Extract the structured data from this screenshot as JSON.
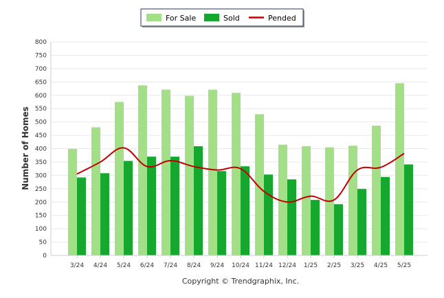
{
  "chart_data": {
    "type": "bar",
    "categories": [
      "3/24",
      "4/24",
      "5/24",
      "6/24",
      "7/24",
      "8/24",
      "9/24",
      "10/24",
      "11/24",
      "12/24",
      "1/25",
      "2/25",
      "3/25",
      "4/25",
      "5/25"
    ],
    "series": [
      {
        "name": "For Sale",
        "type": "bar",
        "color": "#a3df86",
        "values": [
          399,
          480,
          575,
          637,
          621,
          598,
          621,
          609,
          529,
          415,
          409,
          405,
          411,
          486,
          645
        ]
      },
      {
        "name": "Sold",
        "type": "bar",
        "color": "#16a82e",
        "values": [
          292,
          308,
          354,
          370,
          370,
          409,
          316,
          334,
          303,
          285,
          208,
          192,
          249,
          294,
          341
        ]
      },
      {
        "name": "Pended",
        "type": "line",
        "color": "#c00000",
        "values": [
          305,
          350,
          403,
          333,
          355,
          333,
          320,
          325,
          240,
          200,
          222,
          208,
          320,
          330,
          382
        ]
      }
    ],
    "ylabel": "Number of Homes",
    "xlabel": "",
    "ylim": [
      0,
      800
    ],
    "yticks": [
      0,
      50,
      100,
      150,
      200,
      250,
      300,
      350,
      400,
      450,
      500,
      550,
      600,
      650,
      700,
      750,
      800
    ],
    "grid": true,
    "legend_position": "top-center"
  },
  "footer": {
    "copyright": "Copyright © Trendgraphix, Inc."
  }
}
